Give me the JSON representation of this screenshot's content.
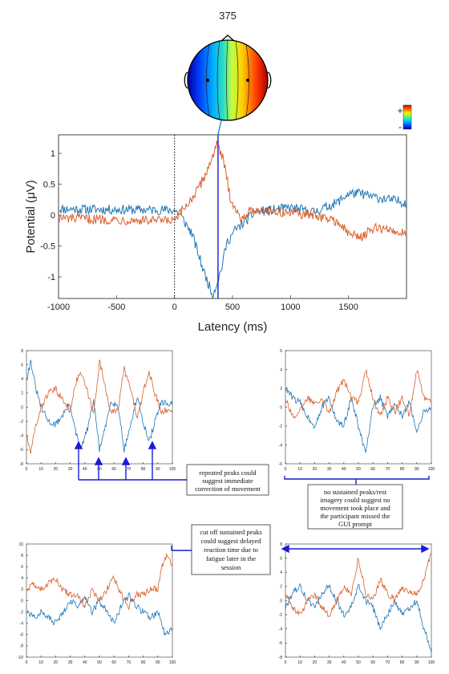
{
  "colors": {
    "blue_series": "#1f77b4",
    "orange_series": "#d95f2b",
    "annotation": "#1a1adc",
    "colorbar": [
      "#0000a0",
      "#0050ff",
      "#00c0ff",
      "#40ff80",
      "#ffee00",
      "#ff6a00",
      "#c00000"
    ]
  },
  "chart_data": [
    {
      "type": "line",
      "title": "375",
      "xlabel": "Latency (ms)",
      "ylabel": "Potential (μV)",
      "xlim": [
        -1000,
        2000
      ],
      "ylim": [
        -1.35,
        1.3
      ],
      "xticks": [
        -1000,
        -500,
        0,
        500,
        1000,
        1500
      ],
      "yticks": [
        -1,
        -0.5,
        0,
        0.5,
        1
      ],
      "marker_latency": 375,
      "stimulus_line": 0,
      "colorbar": {
        "plus_label": "+",
        "minus_label": "-"
      },
      "series": [
        {
          "color": "blue",
          "values": [
            [
              -1000,
              0.1
            ],
            [
              0,
              0.08
            ],
            [
              50,
              0.0
            ],
            [
              150,
              -0.3
            ],
            [
              250,
              -0.9
            ],
            [
              330,
              -1.3
            ],
            [
              400,
              -0.9
            ],
            [
              450,
              -0.45
            ],
            [
              520,
              -0.25
            ],
            [
              700,
              0.05
            ],
            [
              1000,
              0.12
            ],
            [
              1200,
              0.05
            ],
            [
              1400,
              0.2
            ],
            [
              1500,
              0.35
            ],
            [
              1600,
              0.35
            ],
            [
              1700,
              0.3
            ],
            [
              2000,
              0.2
            ]
          ]
        },
        {
          "color": "orange",
          "values": [
            [
              -1000,
              -0.05
            ],
            [
              0,
              -0.1
            ],
            [
              80,
              0.1
            ],
            [
              200,
              0.4
            ],
            [
              300,
              0.8
            ],
            [
              360,
              1.15
            ],
            [
              420,
              0.9
            ],
            [
              480,
              0.3
            ],
            [
              560,
              -0.05
            ],
            [
              700,
              0.1
            ],
            [
              900,
              0.05
            ],
            [
              1200,
              0.0
            ],
            [
              1400,
              -0.1
            ],
            [
              1500,
              -0.3
            ],
            [
              1600,
              -0.35
            ],
            [
              1750,
              -0.2
            ],
            [
              2000,
              -0.3
            ]
          ]
        }
      ]
    },
    {
      "type": "line",
      "xlim": [
        0,
        100
      ],
      "ylim": [
        -8,
        8
      ],
      "xticks": [
        0,
        10,
        20,
        30,
        40,
        50,
        60,
        70,
        80,
        90,
        100
      ],
      "yticks": [
        -8,
        -6,
        -4,
        -2,
        0,
        2,
        4,
        6,
        8
      ],
      "series": [
        {
          "color": "blue",
          "values": [
            [
              0,
              4
            ],
            [
              3,
              6.5
            ],
            [
              6,
              3
            ],
            [
              10,
              0
            ],
            [
              15,
              -2
            ],
            [
              20,
              -2.5
            ],
            [
              25,
              -1
            ],
            [
              30,
              0.5
            ],
            [
              33,
              -3
            ],
            [
              37,
              -6
            ],
            [
              42,
              -3
            ],
            [
              46,
              1
            ],
            [
              50,
              -6
            ],
            [
              54,
              -3
            ],
            [
              58,
              1
            ],
            [
              63,
              0
            ],
            [
              67,
              -6
            ],
            [
              72,
              -2
            ],
            [
              76,
              1.5
            ],
            [
              80,
              -2
            ],
            [
              84,
              -5
            ],
            [
              88,
              -2
            ],
            [
              92,
              0.5
            ],
            [
              96,
              0.5
            ],
            [
              100,
              0.5
            ]
          ]
        },
        {
          "color": "orange",
          "values": [
            [
              0,
              -4
            ],
            [
              3,
              -6.5
            ],
            [
              6,
              -3
            ],
            [
              10,
              0
            ],
            [
              15,
              2
            ],
            [
              20,
              2.5
            ],
            [
              25,
              1
            ],
            [
              30,
              -0.5
            ],
            [
              33,
              3
            ],
            [
              37,
              5
            ],
            [
              42,
              2
            ],
            [
              46,
              -1
            ],
            [
              50,
              6.5
            ],
            [
              54,
              3
            ],
            [
              58,
              -1
            ],
            [
              63,
              0
            ],
            [
              67,
              5.5
            ],
            [
              72,
              2
            ],
            [
              76,
              -1.5
            ],
            [
              80,
              2
            ],
            [
              84,
              5
            ],
            [
              88,
              2
            ],
            [
              92,
              -0.5
            ],
            [
              96,
              -0.5
            ],
            [
              100,
              -0.5
            ]
          ]
        }
      ]
    },
    {
      "type": "line",
      "xlim": [
        0,
        100
      ],
      "ylim": [
        -6,
        6
      ],
      "xticks": [
        0,
        10,
        20,
        30,
        40,
        50,
        60,
        70,
        80,
        90,
        100
      ],
      "yticks": [
        -6,
        -4,
        -2,
        0,
        2,
        4,
        6
      ],
      "series": [
        {
          "color": "blue",
          "values": [
            [
              0,
              2
            ],
            [
              5,
              1
            ],
            [
              10,
              0.5
            ],
            [
              15,
              -1
            ],
            [
              20,
              -2
            ],
            [
              25,
              0
            ],
            [
              30,
              1
            ],
            [
              35,
              -1.5
            ],
            [
              40,
              -2
            ],
            [
              45,
              1
            ],
            [
              50,
              -2
            ],
            [
              55,
              -5
            ],
            [
              60,
              0
            ],
            [
              65,
              1
            ],
            [
              70,
              -1
            ],
            [
              75,
              0.5
            ],
            [
              80,
              -1
            ],
            [
              85,
              0.5
            ],
            [
              90,
              -2.5
            ],
            [
              95,
              -0.5
            ],
            [
              100,
              0
            ]
          ]
        },
        {
          "color": "orange",
          "values": [
            [
              0,
              1
            ],
            [
              5,
              -1
            ],
            [
              10,
              -0.5
            ],
            [
              15,
              1
            ],
            [
              20,
              0.5
            ],
            [
              25,
              1
            ],
            [
              30,
              -0.5
            ],
            [
              35,
              1.5
            ],
            [
              40,
              3
            ],
            [
              45,
              1
            ],
            [
              50,
              0.5
            ],
            [
              55,
              4
            ],
            [
              60,
              1
            ],
            [
              65,
              -1
            ],
            [
              70,
              1
            ],
            [
              75,
              -0.5
            ],
            [
              80,
              1
            ],
            [
              85,
              -1
            ],
            [
              90,
              4
            ],
            [
              95,
              1
            ],
            [
              100,
              0.5
            ]
          ]
        }
      ]
    },
    {
      "type": "line",
      "xlim": [
        0,
        100
      ],
      "ylim": [
        -10,
        10
      ],
      "xticks": [
        0,
        10,
        20,
        30,
        40,
        50,
        60,
        70,
        80,
        90,
        100
      ],
      "yticks": [
        -10,
        -8,
        -6,
        -4,
        -2,
        0,
        2,
        4,
        6,
        8,
        10
      ],
      "series": [
        {
          "color": "blue",
          "values": [
            [
              0,
              -2
            ],
            [
              5,
              -3
            ],
            [
              10,
              -2
            ],
            [
              15,
              -3
            ],
            [
              20,
              -4
            ],
            [
              25,
              -2
            ],
            [
              30,
              0
            ],
            [
              35,
              -1
            ],
            [
              40,
              1
            ],
            [
              45,
              -2
            ],
            [
              50,
              0
            ],
            [
              55,
              -2
            ],
            [
              60,
              -4
            ],
            [
              65,
              -1
            ],
            [
              70,
              1
            ],
            [
              75,
              -1
            ],
            [
              80,
              -2
            ],
            [
              85,
              -3
            ],
            [
              90,
              -2
            ],
            [
              95,
              -6
            ],
            [
              100,
              -5
            ]
          ]
        },
        {
          "color": "orange",
          "values": [
            [
              0,
              2
            ],
            [
              5,
              3
            ],
            [
              10,
              2
            ],
            [
              15,
              3
            ],
            [
              20,
              4
            ],
            [
              25,
              2
            ],
            [
              30,
              1
            ],
            [
              35,
              1
            ],
            [
              40,
              -1
            ],
            [
              45,
              2
            ],
            [
              50,
              0
            ],
            [
              55,
              2
            ],
            [
              60,
              4
            ],
            [
              65,
              1
            ],
            [
              70,
              -1
            ],
            [
              75,
              1
            ],
            [
              80,
              1
            ],
            [
              85,
              2
            ],
            [
              90,
              2
            ],
            [
              93,
              6
            ],
            [
              96,
              8
            ],
            [
              100,
              6
            ]
          ]
        }
      ]
    },
    {
      "type": "line",
      "xlim": [
        0,
        100
      ],
      "ylim": [
        -8,
        8
      ],
      "xticks": [
        0,
        10,
        20,
        30,
        40,
        50,
        60,
        70,
        80,
        90,
        100
      ],
      "yticks": [
        -8,
        -6,
        -4,
        -2,
        0,
        2,
        4,
        6,
        8
      ],
      "series": [
        {
          "color": "blue",
          "values": [
            [
              0,
              -1
            ],
            [
              5,
              1
            ],
            [
              10,
              2
            ],
            [
              15,
              0
            ],
            [
              20,
              -1
            ],
            [
              25,
              1
            ],
            [
              30,
              2
            ],
            [
              35,
              0
            ],
            [
              40,
              -2
            ],
            [
              45,
              -1
            ],
            [
              50,
              2
            ],
            [
              55,
              0
            ],
            [
              60,
              -1
            ],
            [
              65,
              -4
            ],
            [
              70,
              -2
            ],
            [
              75,
              0
            ],
            [
              80,
              -2
            ],
            [
              85,
              -1
            ],
            [
              90,
              0
            ],
            [
              95,
              -4
            ],
            [
              100,
              -7
            ]
          ]
        },
        {
          "color": "orange",
          "values": [
            [
              0,
              1
            ],
            [
              5,
              -1
            ],
            [
              10,
              -2
            ],
            [
              15,
              0
            ],
            [
              20,
              1
            ],
            [
              25,
              -1
            ],
            [
              30,
              -2
            ],
            [
              35,
              0
            ],
            [
              40,
              2
            ],
            [
              45,
              1
            ],
            [
              50,
              6
            ],
            [
              55,
              1
            ],
            [
              60,
              0
            ],
            [
              65,
              3
            ],
            [
              70,
              1
            ],
            [
              75,
              0
            ],
            [
              80,
              2
            ],
            [
              85,
              1
            ],
            [
              90,
              1
            ],
            [
              95,
              3
            ],
            [
              100,
              7
            ]
          ]
        }
      ]
    }
  ],
  "annotations": [
    {
      "text": [
        "repeated peaks could",
        "suggest immediate",
        "correction of movement"
      ]
    },
    {
      "text": [
        "no sustained peaks/rest",
        "imagery could suggest no",
        "movement took place and",
        "the participant missed the",
        "GUI prompt"
      ]
    },
    {
      "text": [
        "cut off sustained peaks",
        "could suggest delayed",
        "reaction time due to",
        "fatigue later in the",
        "session"
      ]
    }
  ]
}
